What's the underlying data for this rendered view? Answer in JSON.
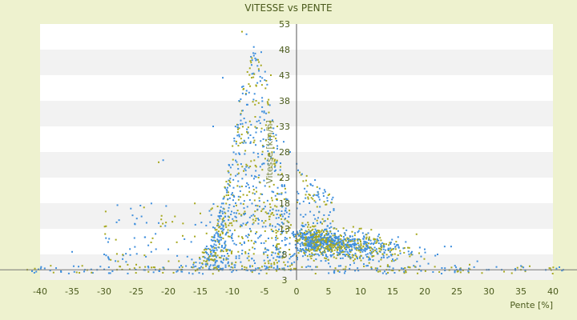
{
  "chart_data": {
    "type": "scatter",
    "title": "VITESSE vs PENTE",
    "xlabel": "Pente [%]",
    "ylabel": "Vitesse [km/h]",
    "xlim": [
      -40,
      42
    ],
    "ylim": [
      3,
      53
    ],
    "x_ticks": [
      -40,
      -35,
      -30,
      -25,
      -20,
      -15,
      -10,
      -5,
      0,
      5,
      10,
      15,
      20,
      25,
      30,
      35,
      40
    ],
    "y_ticks": [
      3,
      8,
      13,
      18,
      23,
      28,
      33,
      38,
      43,
      48,
      53
    ],
    "grid": "horizontal bands",
    "legend": "none",
    "series": [
      {
        "color": "#3f8fdd",
        "points": []
      },
      {
        "color": "#a6a81e",
        "points": []
      }
    ],
    "sample_points": [
      [
        -8.5,
        51.5
      ],
      [
        -7.8,
        51
      ],
      [
        -7,
        45
      ],
      [
        -6,
        46
      ],
      [
        -5.5,
        47.5
      ],
      [
        -4,
        43
      ],
      [
        -11.5,
        42.5
      ],
      [
        -13,
        33
      ],
      [
        -21.5,
        26
      ],
      [
        -20.8,
        26.4
      ],
      [
        -3,
        33
      ],
      [
        -2,
        30
      ],
      [
        -1,
        28
      ],
      [
        0.5,
        24
      ],
      [
        2,
        18
      ],
      [
        4,
        14
      ],
      [
        6,
        12
      ],
      [
        8,
        11
      ],
      [
        10,
        10.5
      ],
      [
        12,
        10
      ],
      [
        15,
        9
      ],
      [
        18,
        8.5
      ],
      [
        22,
        8
      ],
      [
        27,
        6
      ],
      [
        32,
        5
      ],
      [
        35,
        5
      ],
      [
        -35,
        8.5
      ],
      [
        -30,
        8
      ],
      [
        -25,
        6
      ],
      [
        -20,
        9
      ],
      [
        -15,
        16
      ],
      [
        -10,
        20
      ],
      [
        -6,
        15
      ],
      [
        -3,
        10
      ],
      [
        3,
        10
      ],
      [
        5,
        9
      ],
      [
        7,
        10
      ],
      [
        9,
        11
      ],
      [
        14,
        10
      ],
      [
        20,
        9
      ],
      [
        -42,
        5
      ],
      [
        41,
        5.5
      ],
      [
        -33,
        5
      ],
      [
        -28,
        5
      ],
      [
        -22,
        5
      ],
      [
        -18,
        5
      ],
      [
        25,
        5
      ],
      [
        30,
        5
      ]
    ]
  }
}
